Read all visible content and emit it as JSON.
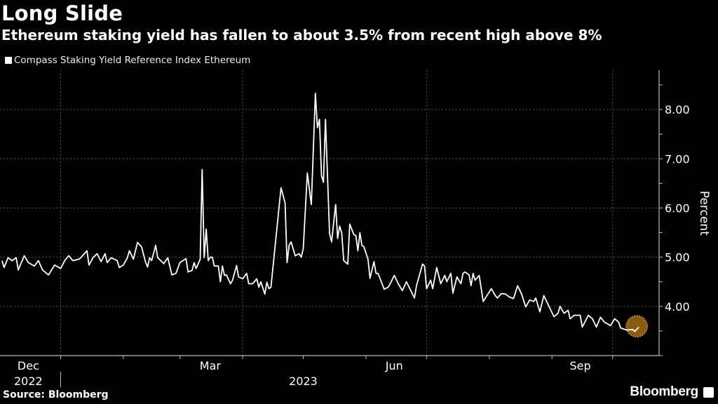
{
  "title": "Long Slide",
  "subtitle": "Ethereum staking yield has fallen to about 3.5% from recent high above 8%",
  "source": "Source: Bloomberg",
  "brand": "Bloomberg",
  "chart_data": {
    "type": "line",
    "title": "Long Slide",
    "subtitle": "Ethereum staking yield has fallen to about 3.5% from recent high above 8%",
    "ylabel": "Percent",
    "xlabel": "",
    "legend_position": "top-left",
    "grid": true,
    "y_axis_side": "right",
    "xlim": [
      "2022-12-02",
      "2023-10-24"
    ],
    "ylim": [
      3.0,
      8.8
    ],
    "y_ticks": [
      4,
      5,
      6,
      7,
      8
    ],
    "y_tick_labels": [
      "4.00",
      "5.00",
      "6.00",
      "7.00",
      "8.00"
    ],
    "x_tick_labels": [
      {
        "label": "Dec",
        "date": "2022-12-16"
      },
      {
        "label": "Mar",
        "date": "2023-03-16"
      },
      {
        "label": "Jun",
        "date": "2023-06-15"
      },
      {
        "label": "Sep",
        "date": "2023-09-15"
      }
    ],
    "year_labels": [
      {
        "label": "2022",
        "date": "2022-12-16"
      },
      {
        "label": "2023",
        "date": "2023-05-01"
      }
    ],
    "colors": {
      "background": "#000000",
      "line": "#ffffff",
      "highlight_fill": "#8a5a12",
      "highlight_border": "#e8a030",
      "grid": "#555555"
    },
    "highlight": "last-point",
    "series": [
      {
        "name": "Compass Staking Yield Reference Index Ethereum",
        "x": [
          "2022-12-03",
          "2022-12-04",
          "2022-12-06",
          "2022-12-08",
          "2022-12-10",
          "2022-12-11",
          "2022-12-14",
          "2022-12-16",
          "2022-12-19",
          "2022-12-21",
          "2022-12-23",
          "2022-12-26",
          "2022-12-29",
          "2023-01-01",
          "2023-01-03",
          "2023-01-05",
          "2023-01-07",
          "2023-01-10",
          "2023-01-11",
          "2023-01-14",
          "2023-01-15",
          "2023-01-17",
          "2023-01-19",
          "2023-01-21",
          "2023-01-23",
          "2023-01-24",
          "2023-01-26",
          "2023-01-29",
          "2023-01-30",
          "2023-02-01",
          "2023-02-03",
          "2023-02-04",
          "2023-02-06",
          "2023-02-08",
          "2023-02-10",
          "2023-02-12",
          "2023-02-13",
          "2023-02-14",
          "2023-02-15",
          "2023-02-17",
          "2023-02-18",
          "2023-02-21",
          "2023-02-23",
          "2023-02-25",
          "2023-02-27",
          "2023-03-01",
          "2023-03-04",
          "2023-03-05",
          "2023-03-07",
          "2023-03-08",
          "2023-03-09",
          "2023-03-11",
          "2023-03-12",
          "2023-03-13",
          "2023-03-14",
          "2023-03-15",
          "2023-03-16",
          "2023-03-17",
          "2023-03-18",
          "2023-03-20",
          "2023-03-21",
          "2023-03-22",
          "2023-03-23",
          "2023-03-24",
          "2023-03-26",
          "2023-03-27",
          "2023-03-29",
          "2023-03-30",
          "2023-04-01",
          "2023-04-03",
          "2023-04-04",
          "2023-04-06",
          "2023-04-08",
          "2023-04-09",
          "2023-04-10",
          "2023-04-12",
          "2023-04-13",
          "2023-04-14",
          "2023-04-15",
          "2023-04-20",
          "2023-04-22",
          "2023-04-23",
          "2023-04-24",
          "2023-04-25",
          "2023-04-27",
          "2023-04-29",
          "2023-04-30",
          "2023-05-01",
          "2023-05-03",
          "2023-05-05",
          "2023-05-07",
          "2023-05-08",
          "2023-05-09",
          "2023-05-10",
          "2023-05-11",
          "2023-05-12",
          "2023-05-14",
          "2023-05-15",
          "2023-05-17",
          "2023-05-18",
          "2023-05-19",
          "2023-05-20",
          "2023-05-21",
          "2023-05-23",
          "2023-05-24",
          "2023-05-26",
          "2023-05-27",
          "2023-05-28",
          "2023-05-29",
          "2023-05-30",
          "2023-05-31",
          "2023-06-02",
          "2023-06-03",
          "2023-06-05",
          "2023-06-06",
          "2023-06-07",
          "2023-06-10",
          "2023-06-12",
          "2023-06-13",
          "2023-06-15",
          "2023-06-17",
          "2023-06-19",
          "2023-06-21",
          "2023-06-25",
          "2023-06-26",
          "2023-06-29",
          "2023-06-30",
          "2023-07-01",
          "2023-07-03",
          "2023-07-04",
          "2023-07-06",
          "2023-07-08",
          "2023-07-10",
          "2023-07-11",
          "2023-07-13",
          "2023-07-14",
          "2023-07-16",
          "2023-07-18",
          "2023-07-19",
          "2023-07-20",
          "2023-07-22",
          "2023-07-23",
          "2023-07-24",
          "2023-07-25",
          "2023-07-27",
          "2023-07-29",
          "2023-08-02",
          "2023-08-04",
          "2023-08-05",
          "2023-08-07",
          "2023-08-09",
          "2023-08-11",
          "2023-08-13",
          "2023-08-15",
          "2023-08-17",
          "2023-08-19",
          "2023-08-21",
          "2023-08-23",
          "2023-08-24",
          "2023-08-26",
          "2023-08-28",
          "2023-08-31",
          "2023-09-02",
          "2023-09-04",
          "2023-09-05",
          "2023-09-07",
          "2023-09-09",
          "2023-09-10",
          "2023-09-12",
          "2023-09-15",
          "2023-09-16",
          "2023-09-19",
          "2023-09-21",
          "2023-09-23",
          "2023-09-25",
          "2023-09-27",
          "2023-09-30",
          "2023-10-02",
          "2023-10-04",
          "2023-10-05",
          "2023-10-08",
          "2023-10-11",
          "2023-10-12",
          "2023-10-14"
        ],
        "values": [
          4.93,
          4.79,
          4.99,
          4.93,
          4.99,
          4.74,
          5.03,
          4.89,
          4.82,
          4.93,
          4.74,
          4.64,
          4.84,
          4.77,
          4.93,
          5.03,
          4.93,
          4.96,
          4.99,
          5.13,
          4.84,
          4.99,
          5.07,
          4.91,
          5.07,
          4.89,
          4.99,
          4.93,
          4.79,
          4.84,
          4.99,
          5.13,
          4.96,
          5.3,
          5.21,
          4.9,
          4.8,
          4.99,
          4.93,
          5.24,
          4.99,
          4.87,
          4.99,
          4.64,
          4.67,
          4.89,
          4.97,
          4.7,
          4.73,
          4.89,
          4.77,
          4.96,
          6.78,
          4.99,
          5.57,
          4.93,
          5.0,
          5.0,
          4.82,
          4.82,
          4.5,
          4.82,
          4.63,
          4.64,
          4.46,
          4.53,
          4.83,
          4.6,
          4.56,
          4.67,
          4.46,
          4.46,
          4.56,
          4.39,
          4.5,
          4.25,
          4.49,
          4.36,
          4.39,
          6.41,
          6.1,
          4.89,
          5.24,
          5.31,
          5.03,
          5.07,
          5.0,
          5.17,
          6.71,
          6.07,
          8.33,
          7.63,
          7.8,
          6.66,
          6.52,
          7.8,
          5.48,
          5.31,
          6.07,
          5.38,
          5.63,
          5.5,
          4.93,
          4.86,
          5.67,
          5.46,
          5.44,
          5.13,
          5.5,
          5.24,
          5.21,
          4.96,
          4.57,
          4.91,
          4.67,
          4.67,
          4.35,
          4.39,
          4.46,
          4.63,
          4.46,
          4.32,
          4.5,
          4.17,
          4.42,
          4.86,
          4.82,
          4.36,
          4.53,
          4.36,
          4.79,
          4.46,
          4.63,
          4.5,
          4.67,
          4.27,
          4.6,
          4.46,
          4.67,
          4.7,
          4.64,
          4.42,
          4.67,
          4.53,
          4.63,
          4.1,
          4.36,
          4.22,
          4.17,
          4.26,
          4.25,
          4.19,
          4.16,
          4.42,
          4.25,
          3.99,
          4.13,
          4.1,
          4.17,
          3.89,
          4.22,
          3.96,
          3.79,
          3.86,
          4.0,
          3.86,
          3.92,
          3.75,
          3.82,
          3.82,
          3.58,
          3.82,
          3.75,
          3.58,
          3.78,
          3.68,
          3.61,
          3.75,
          3.68,
          3.56,
          3.52,
          3.53,
          3.49,
          3.58
        ]
      }
    ]
  }
}
